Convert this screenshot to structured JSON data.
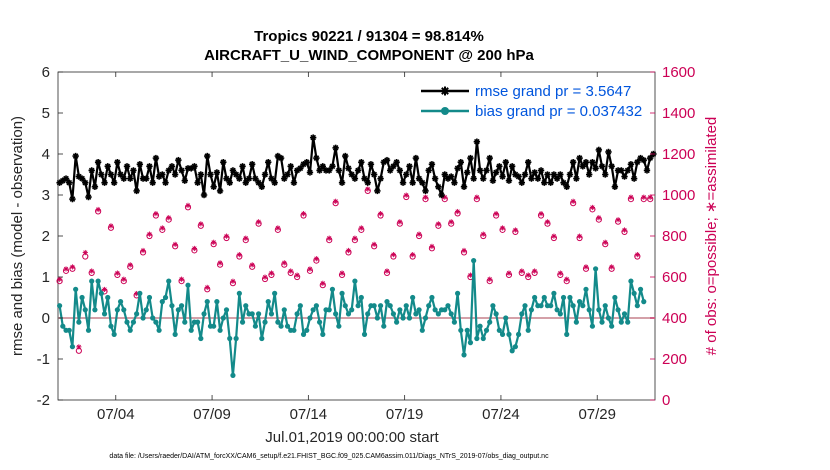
{
  "chart_data": {
    "type": "line",
    "title": "Tropics 90221 / 91304 = 98.814%",
    "subtitle": "AIRCRAFT_U_WIND_COMPONENT @ 200 hPa",
    "xlabel": "Jul.01,2019 00:00:00 start",
    "ylabel": "rmse and bias (model - observation)",
    "ylabel_right": "# of obs: o=possible; ∗=assimilated",
    "footnote": "data file: /Users/raeder/DAI/ATM_forcXX/CAM6_setup/f.e21.FHIST_BGC.f09_025.CAM6assim.011/Diags_NTrS_2019-07/obs_diag_output.nc",
    "xlim": [
      1,
      32
    ],
    "ylim": [
      -2,
      6
    ],
    "ylim_right": [
      0,
      1600
    ],
    "x_ticks": [
      4,
      9,
      14,
      19,
      24,
      29
    ],
    "x_tick_labels": [
      "07/04",
      "07/09",
      "07/14",
      "07/19",
      "07/24",
      "07/29"
    ],
    "y_ticks": [
      -2,
      -1,
      0,
      1,
      2,
      3,
      4,
      5,
      6
    ],
    "y_tick_labels": [
      "-2",
      "-1",
      "0",
      "1",
      "2",
      "3",
      "4",
      "5",
      "6"
    ],
    "y_ticks_right": [
      0,
      200,
      400,
      600,
      800,
      1000,
      1200,
      1400,
      1600
    ],
    "y_tick_labels_right": [
      "0",
      "200",
      "400",
      "600",
      "800",
      "1000",
      "1200",
      "1400",
      "1600"
    ],
    "legend_position": "top-right",
    "series": [
      {
        "name": "rmse grand pr = 3.5647",
        "color": "#000000",
        "marker": "asterisk",
        "values": [
          3.3,
          3.35,
          3.4,
          3.3,
          2.9,
          3.95,
          3.45,
          3.4,
          3.3,
          2.95,
          3.6,
          3.2,
          3.8,
          3.5,
          3.3,
          3.7,
          3.5,
          3.3,
          3.8,
          3.5,
          3.4,
          3.7,
          3.4,
          3.6,
          3.1,
          3.75,
          3.4,
          3.4,
          3.7,
          3.3,
          3.9,
          3.45,
          3.5,
          3.3,
          3.6,
          3.7,
          3.5,
          3.85,
          3.6,
          3.35,
          3.65,
          3.65,
          3.7,
          3.3,
          3.5,
          3.0,
          3.95,
          3.5,
          3.2,
          3.55,
          3.1,
          3.8,
          3.4,
          3.3,
          3.6,
          3.5,
          3.4,
          3.7,
          3.3,
          3.4,
          3.75,
          3.4,
          3.3,
          3.2,
          3.5,
          3.8,
          3.4,
          3.3,
          3.95,
          3.9,
          3.4,
          3.5,
          3.7,
          3.3,
          3.6,
          3.65,
          3.75,
          3.8,
          3.55,
          4.4,
          3.9,
          3.6,
          3.7,
          3.6,
          3.6,
          3.7,
          4.15,
          3.6,
          3.3,
          3.95,
          3.65,
          3.5,
          3.4,
          3.6,
          3.8,
          3.4,
          3.3,
          3.75,
          3.5,
          3.1,
          3.4,
          3.8,
          3.85,
          3.6,
          3.7,
          3.8,
          3.6,
          3.3,
          3.5,
          3.7,
          3.3,
          3.9,
          3.4,
          3.3,
          3.1,
          3.6,
          3.75,
          3.4,
          3.2,
          3.0,
          3.5,
          3.4,
          3.45,
          3.3,
          3.65,
          3.8,
          3.2,
          3.55,
          3.9,
          3.4,
          4.3,
          3.6,
          3.4,
          3.6,
          3.9,
          3.35,
          3.55,
          3.7,
          3.45,
          3.8,
          3.35,
          3.7,
          3.5,
          3.45,
          3.3,
          3.5,
          3.8,
          3.4,
          3.55,
          3.4,
          3.6,
          3.3,
          3.5,
          3.3,
          3.5,
          3.4,
          3.5,
          3.3,
          3.2,
          3.5,
          3.8,
          3.4,
          3.9,
          3.7,
          3.8,
          3.5,
          3.8,
          3.65,
          4.1,
          3.7,
          3.5,
          4.05,
          3.7,
          3.2,
          3.6,
          3.6,
          3.45,
          3.6,
          3.75,
          3.4,
          3.8,
          3.9,
          3.85,
          3.6,
          3.9,
          4.0
        ]
      },
      {
        "name": "bias grand pr = 0.037432",
        "color": "#138a8a",
        "marker": "dot",
        "values": [
          0.3,
          -0.2,
          -0.3,
          -0.3,
          -0.7,
          0.7,
          -0.1,
          0.5,
          0.2,
          -0.3,
          0.9,
          0.2,
          0.9,
          0.6,
          0.1,
          0.5,
          -0.2,
          -0.4,
          0.2,
          0.4,
          0.2,
          -0.1,
          -0.3,
          -0.1,
          0.1,
          0.6,
          0.0,
          0.2,
          0.5,
          0.0,
          -0.1,
          -0.3,
          0.4,
          0.5,
          0.9,
          0.3,
          -0.4,
          0.2,
          0.3,
          -0.1,
          0.8,
          -0.3,
          -0.1,
          -0.1,
          -0.5,
          0.1,
          0.4,
          -0.2,
          -0.2,
          0.4,
          -0.3,
          0.0,
          0.2,
          -0.5,
          -1.4,
          -0.5,
          0.6,
          -0.1,
          0.3,
          0.1,
          0.1,
          -0.2,
          0.1,
          -0.5,
          -0.1,
          0.4,
          0.1,
          0.6,
          -0.1,
          -0.2,
          0.2,
          -0.2,
          -0.3,
          -0.3,
          0.1,
          0.3,
          -0.4,
          -0.3,
          0.0,
          0.2,
          0.3,
          -0.1,
          -0.4,
          0.2,
          0.2,
          0.7,
          0.1,
          -0.2,
          0.6,
          0.3,
          0.1,
          0.2,
          0.9,
          0.3,
          0.5,
          -0.4,
          0.1,
          0.3,
          0.3,
          0.0,
          0.3,
          -0.2,
          0.4,
          0.3,
          0.1,
          -0.1,
          0.2,
          0.0,
          0.3,
          0.0,
          0.5,
          0.1,
          0.2,
          -0.3,
          0.0,
          0.3,
          0.5,
          0.2,
          0.1,
          0.2,
          0.2,
          0.3,
          0.1,
          -0.1,
          0.6,
          -0.3,
          -0.9,
          -0.3,
          -0.6,
          1.4,
          -0.5,
          -0.2,
          -0.5,
          -0.3,
          -0.1,
          0.3,
          0.1,
          -0.3,
          -0.4,
          0.0,
          -0.4,
          -0.8,
          -0.7,
          -0.4,
          0.1,
          0.3,
          -0.3,
          0.2,
          0.5,
          0.3,
          0.3,
          0.5,
          0.3,
          0.3,
          0.6,
          0.2,
          0.1,
          0.5,
          -0.4,
          0.5,
          0.3,
          -0.1,
          0.4,
          0.3,
          0.7,
          0.2,
          -0.2,
          1.2,
          0.2,
          -0.1,
          0.3,
          0.0,
          -0.2,
          0.5,
          0.2,
          -0.1,
          0.1,
          -0.1,
          0.9,
          0.6,
          0.3,
          0.7,
          0.4
        ]
      },
      {
        "name": "# of obs possible",
        "color": "#cc0055",
        "marker": "circle",
        "values": [
          580,
          900,
          630,
          860,
          640,
          420,
          240,
          500,
          700,
          880,
          620,
          780,
          920,
          610,
          530,
          720,
          840,
          690,
          610,
          740,
          580,
          820,
          650,
          890,
          510,
          960,
          720,
          450,
          800,
          700,
          900,
          620,
          830,
          570,
          880,
          390,
          750,
          960,
          580,
          700,
          940,
          670,
          730,
          610,
          850,
          980,
          540,
          600,
          760,
          900,
          660,
          640,
          790,
          880,
          570,
          1020,
          700,
          600,
          780,
          860,
          650,
          520,
          860,
          700,
          590,
          950,
          610,
          740,
          830,
          930,
          660,
          880,
          620,
          960,
          600,
          760,
          900,
          640,
          630,
          840,
          680,
          920,
          560,
          730,
          780,
          900,
          960,
          840,
          610,
          890,
          720,
          600,
          780,
          680,
          830,
          550,
          1020,
          800,
          750,
          640,
          900,
          700,
          620,
          930,
          700,
          580,
          860,
          750,
          990,
          940,
          700,
          660,
          800,
          660,
          980,
          640,
          740,
          780,
          850,
          600,
          980,
          650,
          860,
          650,
          910,
          630,
          720,
          880,
          600,
          660,
          980,
          780,
          800,
          900,
          580,
          640,
          900,
          720,
          830,
          990,
          610,
          660,
          820,
          820,
          620,
          940,
          600,
          920,
          620,
          600,
          900,
          650,
          860,
          600,
          790,
          920,
          610,
          880,
          580,
          780,
          960,
          600,
          790,
          860,
          640,
          600,
          930,
          600,
          880,
          610,
          760,
          900,
          640,
          550,
          870,
          640,
          820,
          600,
          980,
          600,
          700,
          900,
          980,
          600,
          980,
          1000
        ]
      },
      {
        "name": "# of obs assimilated",
        "color": "#cc0055",
        "marker": "asterisk",
        "values": [
          560,
          890,
          610,
          840,
          620,
          400,
          230,
          480,
          690,
          860,
          600,
          760,
          900,
          590,
          510,
          700,
          820,
          670,
          590,
          720,
          560,
          800,
          630,
          870,
          490,
          940,
          700,
          440,
          780,
          680,
          880,
          600,
          810,
          550,
          860,
          380,
          730,
          940,
          560,
          680,
          920,
          650,
          710,
          590,
          830,
          960,
          520,
          580,
          740,
          880,
          640,
          620,
          770,
          860,
          550,
          1000,
          680,
          580,
          760,
          840,
          630,
          500,
          840,
          680,
          570,
          930,
          590,
          720,
          810,
          910,
          640,
          860,
          600,
          940,
          580,
          740,
          880,
          620,
          610,
          820,
          660,
          900,
          540,
          710,
          760,
          880,
          940,
          820,
          590,
          870,
          700,
          580,
          760,
          660,
          810,
          530,
          1000,
          780,
          730,
          620,
          880,
          680,
          600,
          910,
          680,
          560,
          840,
          730,
          970,
          920,
          680,
          640,
          780,
          640,
          960,
          620,
          720,
          760,
          830,
          580,
          960,
          630,
          840,
          630,
          890,
          610,
          700,
          860,
          580,
          640,
          960,
          760,
          780,
          880,
          560,
          620,
          880,
          700,
          810,
          970,
          590,
          640,
          800,
          800,
          600,
          920,
          580,
          900,
          600,
          580,
          880,
          630,
          840,
          580,
          770,
          900,
          590,
          860,
          560,
          760,
          940,
          580,
          770,
          840,
          620,
          580,
          910,
          580,
          860,
          590,
          740,
          880,
          620,
          530,
          850,
          620,
          800,
          580,
          960,
          580,
          680,
          880,
          960,
          580,
          960,
          980
        ]
      }
    ]
  }
}
